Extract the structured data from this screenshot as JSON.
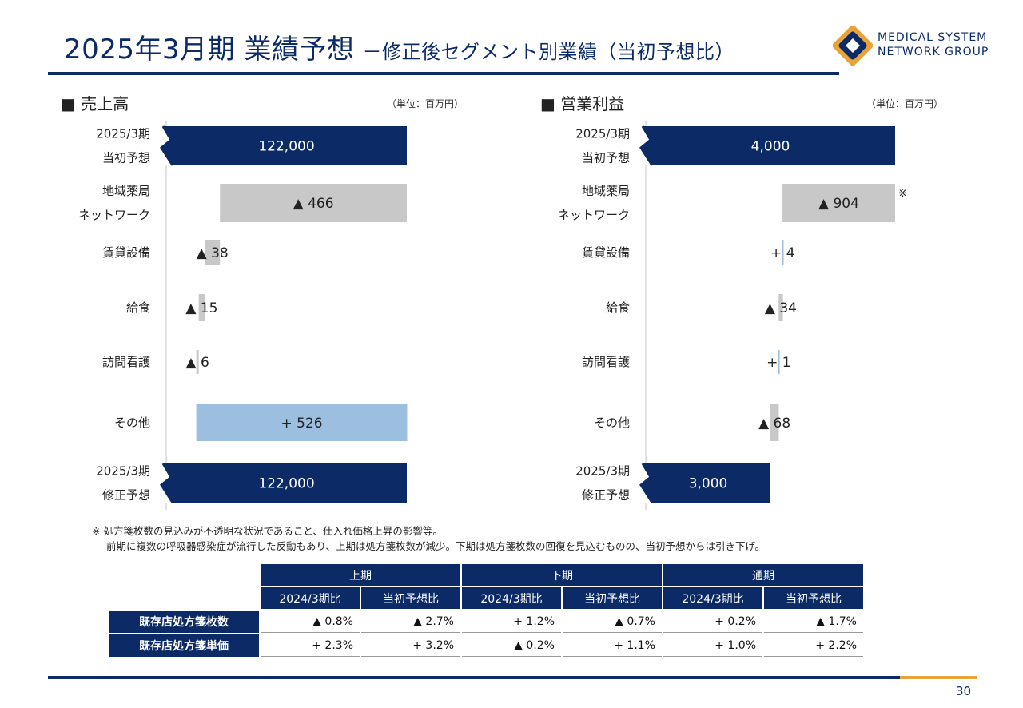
{
  "title": {
    "main": "2025年3月期 業績予想",
    "sub": "－修正後セグメント別業績（当初予想比）"
  },
  "logo": {
    "line1": "MEDICAL SYSTEM",
    "line2": "NETWORK GROUP"
  },
  "colors": {
    "navy": "#0b2a66",
    "gray": "#c8c8c8",
    "lightblue": "#9dbfdf",
    "accent": "#e8a33a"
  },
  "chart_data": [
    {
      "type": "bar",
      "chart_kind": "waterfall",
      "title": "■ 売上高",
      "unit": "（単位：百万円）",
      "categories": [
        [
          "2025/3期",
          "当初予想"
        ],
        [
          "地域薬局",
          "ネットワーク"
        ],
        [
          "賃貸設備"
        ],
        [
          "給食"
        ],
        [
          "訪問看護"
        ],
        [
          "その他"
        ],
        [
          "2025/3期",
          "修正予想"
        ]
      ],
      "values": [
        122000,
        -466,
        -38,
        -15,
        -6,
        526,
        122000
      ],
      "labels": [
        "122,000",
        "▲ 466",
        "▲ 38",
        "▲ 15",
        "▲ 6",
        "+ 526",
        "122,000"
      ],
      "bar_colors": [
        "navy",
        "gray",
        "gray",
        "gray",
        "gray",
        "lightblue",
        "navy"
      ]
    },
    {
      "type": "bar",
      "chart_kind": "waterfall",
      "title": "■ 営業利益",
      "unit": "（単位：百万円）",
      "categories": [
        [
          "2025/3期",
          "当初予想"
        ],
        [
          "地域薬局",
          "ネットワーク"
        ],
        [
          "賃貸設備"
        ],
        [
          "給食"
        ],
        [
          "訪問看護"
        ],
        [
          "その他"
        ],
        [
          "2025/3期",
          "修正予想"
        ]
      ],
      "values": [
        4000,
        -904,
        4,
        -34,
        1,
        -68,
        3000
      ],
      "labels": [
        "4,000",
        "▲ 904",
        "+ 4",
        "▲ 34",
        "+ 1",
        "▲ 68",
        "3,000"
      ],
      "bar_colors": [
        "navy",
        "gray",
        "lightblue",
        "gray",
        "lightblue",
        "gray",
        "navy"
      ],
      "marker": "※"
    }
  ],
  "note": {
    "line1": "※ 処方箋枚数の見込みが不透明な状況であること、仕入れ価格上昇の影響等。",
    "line2": "前期に複数の呼吸器感染症が流行した反動もあり、上期は処方箋枚数が減少。下期は処方箋枚数の回復を見込むものの、当初予想からは引き下げ。"
  },
  "table": {
    "periods": [
      "上期",
      "下期",
      "通期"
    ],
    "subheaders": [
      "2024/3期比",
      "当初予想比",
      "2024/3期比",
      "当初予想比",
      "2024/3期比",
      "当初予想比"
    ],
    "rows": [
      {
        "label": "既存店処方箋枚数",
        "values": [
          "▲ 0.8%",
          "▲ 2.7%",
          "+ 1.2%",
          "▲ 0.7%",
          "+ 0.2%",
          "▲ 1.7%"
        ]
      },
      {
        "label": "既存店処方箋単価",
        "values": [
          "+ 2.3%",
          "+ 3.2%",
          "▲ 0.2%",
          "+ 1.1%",
          "+ 1.0%",
          "+ 2.2%"
        ]
      }
    ]
  },
  "page_number": "30"
}
